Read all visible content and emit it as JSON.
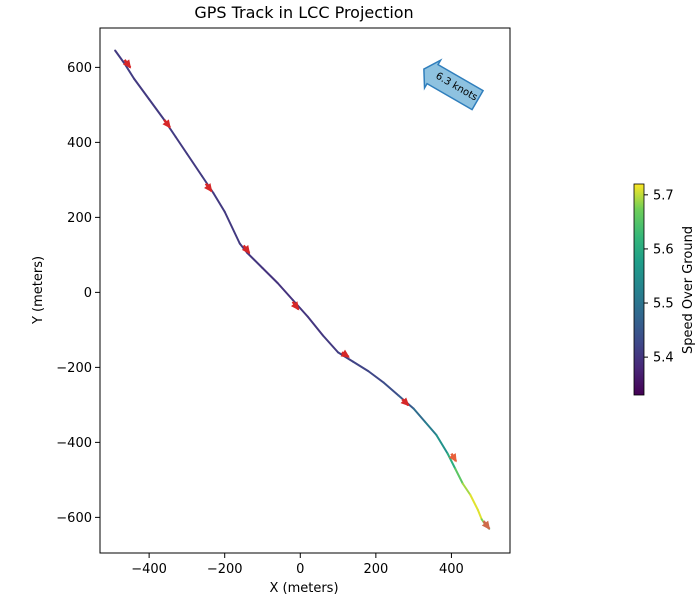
{
  "chart_data": {
    "type": "line",
    "title": "GPS Track in LCC Projection",
    "xlabel": "X (meters)",
    "ylabel": "Y (meters)",
    "xlim": [
      -530,
      555
    ],
    "ylim": [
      -695,
      705
    ],
    "xticks": [
      -400,
      -200,
      0,
      200,
      400
    ],
    "xtick_labels": [
      "−400",
      "−200",
      "0",
      "200",
      "400"
    ],
    "yticks": [
      600,
      400,
      200,
      0,
      -200,
      -400,
      -600
    ],
    "ytick_labels": [
      "600",
      "400",
      "200",
      "0",
      "−200",
      "−400",
      "−600"
    ],
    "grid": false,
    "track": {
      "x": [
        -490,
        -465,
        -440,
        -400,
        -360,
        -330,
        -300,
        -260,
        -230,
        -200,
        -160,
        -140,
        -100,
        -60,
        -20,
        20,
        60,
        100,
        140,
        180,
        220,
        260,
        300,
        330,
        360,
        390,
        410,
        430,
        450,
        470,
        480,
        490,
        500
      ],
      "y": [
        645,
        610,
        570,
        515,
        460,
        415,
        370,
        310,
        265,
        215,
        130,
        105,
        65,
        25,
        -20,
        -65,
        -115,
        -160,
        -185,
        -210,
        -240,
        -275,
        -310,
        -345,
        -380,
        -430,
        -470,
        -510,
        -540,
        -580,
        -605,
        -620,
        -630
      ],
      "speed": [
        5.4,
        5.41,
        5.41,
        5.4,
        5.41,
        5.41,
        5.4,
        5.41,
        5.41,
        5.4,
        5.41,
        5.4,
        5.4,
        5.39,
        5.4,
        5.4,
        5.4,
        5.41,
        5.42,
        5.42,
        5.43,
        5.44,
        5.47,
        5.5,
        5.53,
        5.58,
        5.63,
        5.68,
        5.7,
        5.72,
        5.7,
        5.65,
        5.58
      ]
    },
    "arrows": [
      {
        "x": -465,
        "y": 620,
        "dx": 15,
        "dy": -20,
        "color": "#d62728"
      },
      {
        "x": -360,
        "y": 460,
        "dx": 15,
        "dy": -20,
        "color": "#d62728"
      },
      {
        "x": -250,
        "y": 290,
        "dx": 15,
        "dy": -20,
        "color": "#d62728"
      },
      {
        "x": -150,
        "y": 125,
        "dx": 15,
        "dy": -20,
        "color": "#d62728"
      },
      {
        "x": -20,
        "y": -25,
        "dx": 15,
        "dy": -20,
        "color": "#d62728"
      },
      {
        "x": 110,
        "y": -160,
        "dx": 18,
        "dy": -12,
        "color": "#d62728"
      },
      {
        "x": 270,
        "y": -285,
        "dx": 16,
        "dy": -16,
        "color": "#d62728"
      },
      {
        "x": 400,
        "y": -430,
        "dx": 12,
        "dy": -20,
        "color": "#e8603a"
      },
      {
        "x": 485,
        "y": -610,
        "dx": 15,
        "dy": -20,
        "color": "#cf6b4a"
      }
    ],
    "annotation": {
      "text": "6.3 knots",
      "x": 405,
      "y": 550,
      "rotation": 30,
      "fill": "#8ec2e0",
      "edge": "#2f7ebc"
    },
    "colorbar": {
      "label": "Speed Over Ground",
      "vmin": 5.33,
      "vmax": 5.72,
      "ticks": [
        5.7,
        5.6,
        5.5,
        5.4
      ],
      "tick_labels": [
        "5.7",
        "5.6",
        "5.5",
        "5.4"
      ],
      "colormap": "viridis"
    }
  }
}
